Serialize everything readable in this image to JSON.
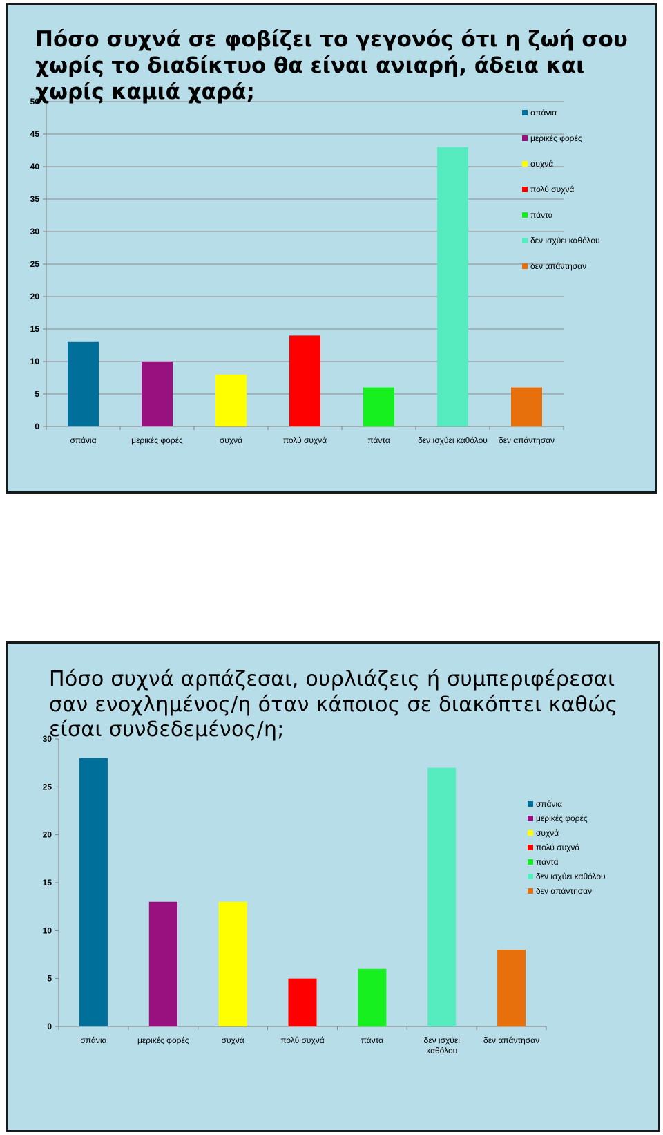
{
  "chart_data": [
    {
      "type": "bar",
      "title": "Πόσο συχνά σε φοβίζει το γεγονός ότι η ζωή σου χωρίς το διαδίκτυο θα είναι ανιαρή, άδεια και χωρίς καμιά χαρά;",
      "categories": [
        "σπάνια",
        "μερικές φορές",
        "συχνά",
        "πολύ συχνά",
        "πάντα",
        "δεν ισχύει καθόλου",
        "δεν απάντησαν"
      ],
      "values": [
        13,
        10,
        8,
        14,
        6,
        43,
        6
      ],
      "colors": [
        "#006f9a",
        "#99107f",
        "#ffff00",
        "#ff0000",
        "#16f01e",
        "#56ecc0",
        "#e8700c"
      ],
      "ylim": [
        0,
        50
      ],
      "yticks": [
        0,
        5,
        10,
        15,
        20,
        25,
        30,
        35,
        40,
        45,
        50
      ],
      "grid": true,
      "legend": "top-right"
    },
    {
      "type": "bar",
      "title": "Πόσο συχνά αρπάζεσαι, ουρλιάζεις ή συμπεριφέρεσαι σαν ενοχλημένος/η όταν κάποιος σε διακόπτει καθώς είσαι συνδεδεμένος/η;",
      "categories": [
        "σπάνια",
        "μερικές φορές",
        "συχνά",
        "πολύ συχνά",
        "πάντα",
        "δεν ισχύει καθόλου",
        "δεν απάντησαν"
      ],
      "values": [
        28,
        13,
        13,
        5,
        6,
        27,
        8
      ],
      "colors": [
        "#006f9a",
        "#99107f",
        "#ffff00",
        "#ff0000",
        "#16f01e",
        "#56ecc0",
        "#e8700c"
      ],
      "ylim": [
        0,
        30
      ],
      "yticks": [
        0,
        5,
        10,
        15,
        20,
        25,
        30
      ],
      "grid": false,
      "legend": "right"
    }
  ]
}
